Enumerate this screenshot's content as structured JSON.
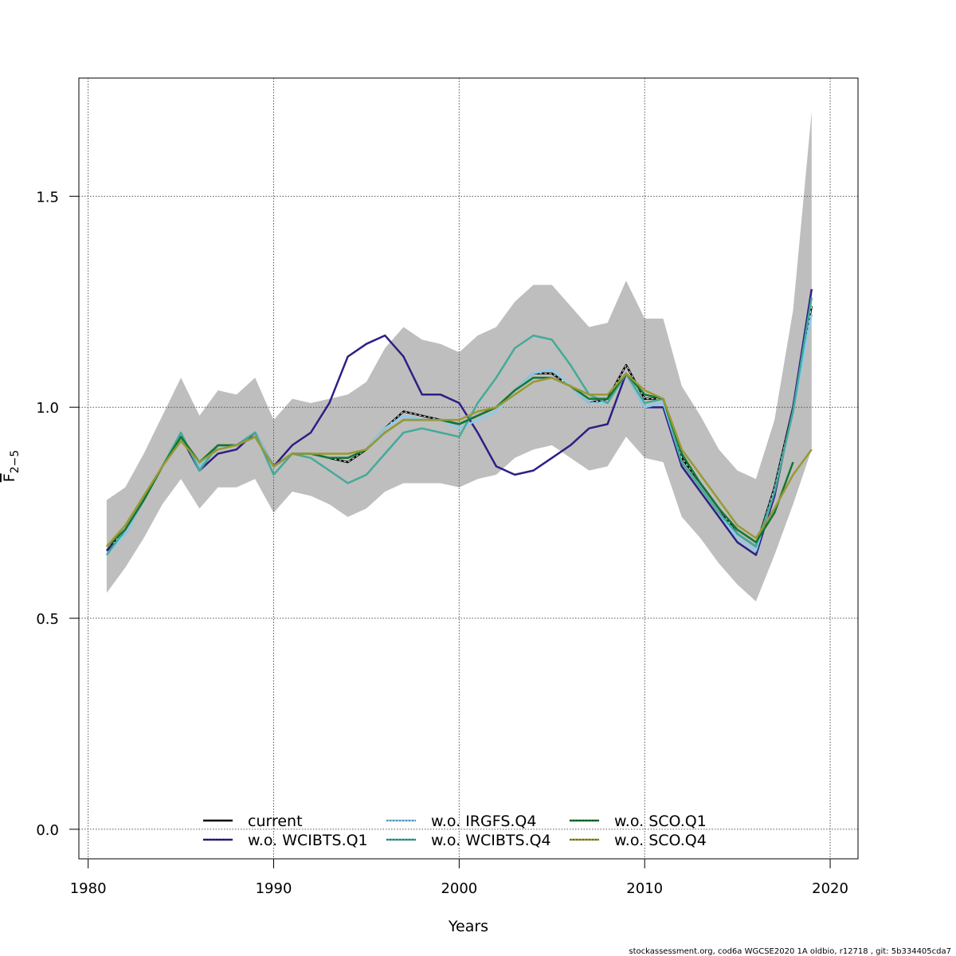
{
  "chart_data": {
    "type": "line",
    "title": "",
    "xlabel": "Years",
    "ylabel": "F̅ 2−5",
    "ylabel_main": "F",
    "ylabel_sub": "2−5",
    "xlim": [
      1979.5,
      2021.5
    ],
    "ylim": [
      -0.07,
      1.78
    ],
    "x_ticks": [
      1980,
      1990,
      2000,
      2010,
      2020
    ],
    "x_tick_labels": [
      "1980",
      "1990",
      "2000",
      "2010",
      "2020"
    ],
    "y_ticks": [
      0.0,
      0.5,
      1.0,
      1.5
    ],
    "y_tick_labels": [
      "0.0",
      "0.5",
      "1.0",
      "1.5"
    ],
    "grid": true,
    "legend_position": "bottom-center",
    "footer": "stockassessment.org, cod6a  WGCSE2020  1A  oldbio, r12718 , git: 5b334405cda7",
    "x": [
      1981,
      1982,
      1983,
      1984,
      1985,
      1986,
      1987,
      1988,
      1989,
      1990,
      1991,
      1992,
      1993,
      1994,
      1995,
      1996,
      1997,
      1998,
      1999,
      2000,
      2001,
      2002,
      2003,
      2004,
      2005,
      2006,
      2007,
      2008,
      2009,
      2010,
      2011,
      2012,
      2013,
      2014,
      2015,
      2016,
      2017,
      2018,
      2019
    ],
    "confidence_band": {
      "name": "current CI",
      "color": "#bebebe",
      "lower": [
        0.56,
        0.62,
        0.69,
        0.77,
        0.83,
        0.76,
        0.81,
        0.81,
        0.83,
        0.75,
        0.8,
        0.79,
        0.77,
        0.74,
        0.76,
        0.8,
        0.82,
        0.82,
        0.82,
        0.81,
        0.83,
        0.84,
        0.88,
        0.9,
        0.91,
        0.88,
        0.85,
        0.86,
        0.93,
        0.88,
        0.87,
        0.74,
        0.69,
        0.63,
        0.58,
        0.54,
        0.65,
        0.77,
        0.9
      ],
      "upper": [
        0.78,
        0.81,
        0.89,
        0.98,
        1.07,
        0.98,
        1.04,
        1.03,
        1.07,
        0.97,
        1.02,
        1.01,
        1.02,
        1.03,
        1.06,
        1.14,
        1.19,
        1.16,
        1.15,
        1.13,
        1.17,
        1.19,
        1.25,
        1.29,
        1.29,
        1.24,
        1.19,
        1.2,
        1.3,
        1.21,
        1.21,
        1.05,
        0.98,
        0.9,
        0.85,
        0.83,
        0.97,
        1.23,
        1.7
      ]
    },
    "series": [
      {
        "name": "current",
        "color": "#000000",
        "dash": "solid",
        "values": [
          0.66,
          0.71,
          0.78,
          0.86,
          0.93,
          0.86,
          0.91,
          0.91,
          0.94,
          0.86,
          0.89,
          0.89,
          0.88,
          0.87,
          0.9,
          0.95,
          0.99,
          0.98,
          0.97,
          0.96,
          0.98,
          1.0,
          1.04,
          1.08,
          1.08,
          1.05,
          1.01,
          1.02,
          1.1,
          1.02,
          1.02,
          0.88,
          0.82,
          0.76,
          0.7,
          0.67,
          0.81,
          1.0,
          1.24
        ]
      },
      {
        "name": "w.o. WCIBTS.Q1",
        "color": "#2e1f84",
        "dash": "solid",
        "values": [
          0.66,
          0.7,
          0.78,
          0.86,
          0.93,
          0.85,
          0.89,
          0.9,
          0.94,
          0.86,
          0.91,
          0.94,
          1.01,
          1.12,
          1.15,
          1.17,
          1.12,
          1.03,
          1.03,
          1.01,
          0.94,
          0.86,
          0.84,
          0.85,
          0.88,
          0.91,
          0.95,
          0.96,
          1.08,
          1.0,
          1.0,
          0.86,
          0.8,
          0.74,
          0.68,
          0.65,
          0.79,
          1.0,
          1.28
        ]
      },
      {
        "name": "w.o. IRGFS.Q4",
        "color": "#88ccee",
        "dash": "solid",
        "values": [
          0.65,
          0.7,
          0.78,
          0.86,
          0.93,
          0.86,
          0.91,
          0.91,
          0.94,
          0.86,
          0.89,
          0.89,
          0.88,
          0.88,
          0.9,
          0.95,
          0.98,
          0.97,
          0.97,
          0.95,
          0.97,
          0.99,
          1.04,
          1.08,
          1.09,
          1.05,
          1.01,
          1.01,
          1.08,
          1.0,
          1.01,
          0.87,
          0.81,
          0.75,
          0.69,
          0.66,
          0.8,
          0.99,
          1.22
        ]
      },
      {
        "name": "w.o. WCIBTS.Q4",
        "color": "#44aa99",
        "dash": "solid",
        "values": [
          0.65,
          0.71,
          0.78,
          0.86,
          0.94,
          0.85,
          0.91,
          0.91,
          0.94,
          0.84,
          0.89,
          0.88,
          0.85,
          0.82,
          0.84,
          0.89,
          0.94,
          0.95,
          0.94,
          0.93,
          1.01,
          1.07,
          1.14,
          1.17,
          1.16,
          1.1,
          1.03,
          1.01,
          1.08,
          1.01,
          1.02,
          0.87,
          0.81,
          0.75,
          0.7,
          0.67,
          0.8,
          0.99,
          1.26
        ]
      },
      {
        "name": "w.o. SCO.Q1",
        "color": "#117733",
        "dash": "solid",
        "values": [
          0.67,
          0.71,
          0.78,
          0.86,
          0.93,
          0.87,
          0.91,
          0.91,
          0.93,
          0.86,
          0.89,
          0.89,
          0.88,
          0.88,
          0.9,
          0.94,
          0.97,
          0.97,
          0.97,
          0.96,
          0.98,
          1.0,
          1.04,
          1.07,
          1.07,
          1.05,
          1.02,
          1.02,
          1.08,
          1.03,
          1.02,
          0.89,
          0.82,
          0.76,
          0.71,
          0.68,
          0.75,
          0.87,
          null
        ]
      },
      {
        "name": "w.o. SCO.Q4",
        "color": "#999933",
        "dash": "solid",
        "values": [
          0.67,
          0.72,
          0.79,
          0.86,
          0.92,
          0.87,
          0.9,
          0.91,
          0.93,
          0.86,
          0.89,
          0.89,
          0.89,
          0.89,
          0.9,
          0.94,
          0.97,
          0.97,
          0.97,
          0.97,
          0.99,
          1.0,
          1.03,
          1.06,
          1.07,
          1.05,
          1.03,
          1.03,
          1.08,
          1.04,
          1.02,
          0.9,
          0.84,
          0.78,
          0.72,
          0.69,
          0.76,
          0.84,
          0.9
        ]
      }
    ],
    "legend": [
      {
        "label": "current",
        "color": "#000000"
      },
      {
        "label": "w.o. WCIBTS.Q1",
        "color": "#2e1f84"
      },
      {
        "label": "w.o. IRGFS.Q4",
        "color": "#88ccee"
      },
      {
        "label": "w.o. WCIBTS.Q4",
        "color": "#44aa99"
      },
      {
        "label": "w.o. SCO.Q1",
        "color": "#117733"
      },
      {
        "label": "w.o. SCO.Q4",
        "color": "#999933"
      }
    ]
  }
}
